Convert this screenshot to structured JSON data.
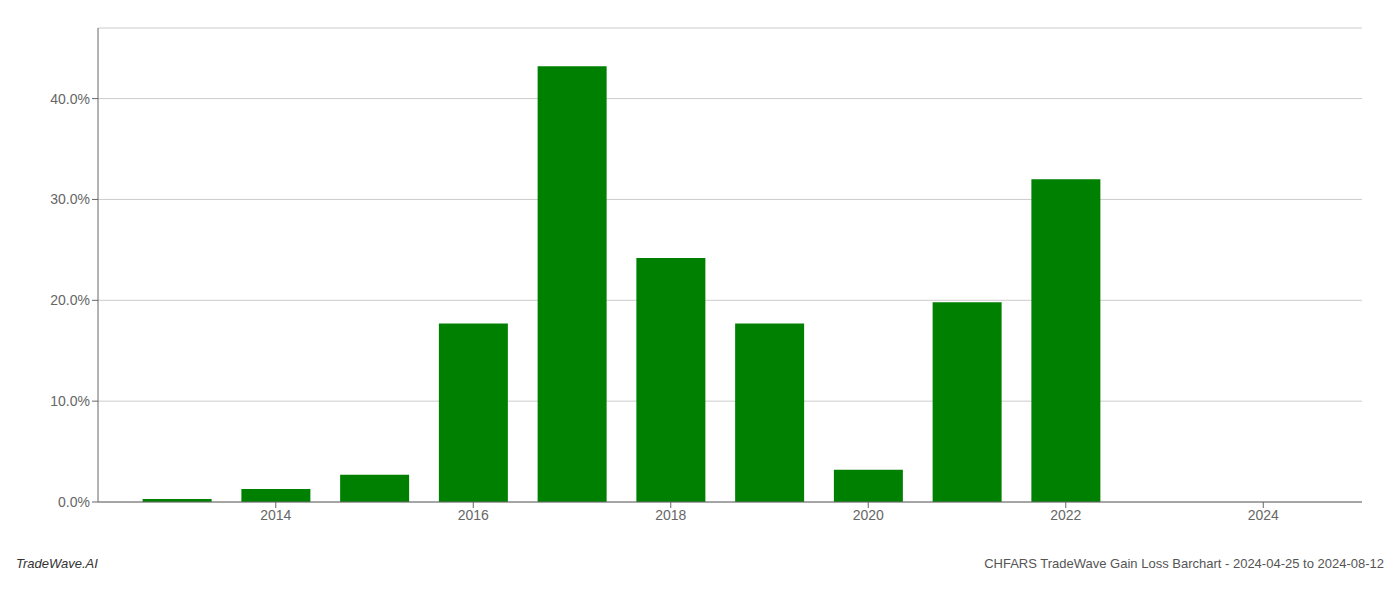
{
  "chart_data": {
    "type": "bar",
    "x": [
      2013,
      2014,
      2015,
      2016,
      2017,
      2018,
      2019,
      2020,
      2021,
      2022,
      2023
    ],
    "values": [
      0.003,
      0.013,
      0.027,
      0.177,
      0.432,
      0.242,
      0.177,
      0.032,
      0.198,
      0.32,
      0.0
    ],
    "color": "#008000",
    "xlim": [
      2012.2,
      2025.0
    ],
    "xticks": [
      2014,
      2016,
      2018,
      2020,
      2022,
      2024
    ],
    "ylim": [
      0,
      0.47
    ],
    "yticks": [
      {
        "value": 0.0,
        "label": "0.0%"
      },
      {
        "value": 0.1,
        "label": "10.0%"
      },
      {
        "value": 0.2,
        "label": "20.0%"
      },
      {
        "value": 0.3,
        "label": "30.0%"
      },
      {
        "value": 0.4,
        "label": "40.0%"
      }
    ],
    "grid": true,
    "annotations": [
      "TradeWave.AI",
      "CHFARS TradeWave Gain Loss Barchart - 2024-04-25 to 2024-08-12"
    ]
  }
}
